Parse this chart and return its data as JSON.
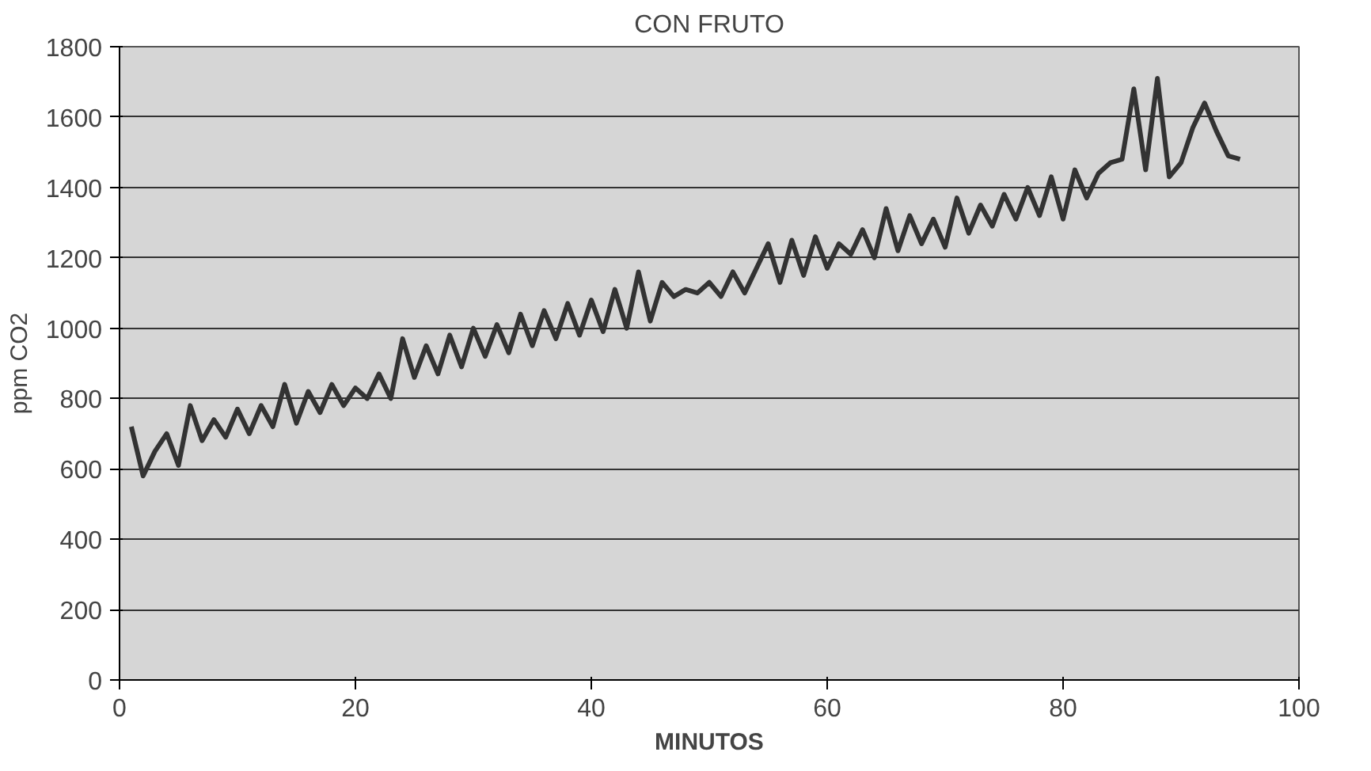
{
  "chart_data": {
    "type": "line",
    "title": "CON FRUTO",
    "xlabel": "MINUTOS",
    "ylabel": "ppm CO2",
    "x": [
      1,
      2,
      3,
      4,
      5,
      6,
      7,
      8,
      9,
      10,
      11,
      12,
      13,
      14,
      15,
      16,
      17,
      18,
      19,
      20,
      21,
      22,
      23,
      24,
      25,
      26,
      27,
      28,
      29,
      30,
      31,
      32,
      33,
      34,
      35,
      36,
      37,
      38,
      39,
      40,
      41,
      42,
      43,
      44,
      45,
      46,
      47,
      48,
      49,
      50,
      51,
      52,
      53,
      54,
      55,
      56,
      57,
      58,
      59,
      60,
      61,
      62,
      63,
      64,
      65,
      66,
      67,
      68,
      69,
      70,
      71,
      72,
      73,
      74,
      75,
      76,
      77,
      78,
      79,
      80,
      81,
      82,
      83,
      84,
      85,
      86,
      87,
      88,
      89,
      90,
      91,
      92,
      93,
      94,
      95
    ],
    "series": [
      {
        "color": "#333333",
        "values": [
          720,
          580,
          650,
          700,
          610,
          780,
          680,
          740,
          690,
          770,
          700,
          780,
          720,
          840,
          730,
          820,
          760,
          840,
          780,
          830,
          800,
          870,
          800,
          970,
          860,
          950,
          870,
          980,
          890,
          1000,
          920,
          1010,
          930,
          1040,
          950,
          1050,
          970,
          1070,
          980,
          1080,
          990,
          1110,
          1000,
          1160,
          1020,
          1130,
          1090,
          1110,
          1100,
          1130,
          1090,
          1160,
          1100,
          1170,
          1240,
          1130,
          1250,
          1150,
          1260,
          1170,
          1240,
          1210,
          1280,
          1200,
          1340,
          1220,
          1320,
          1240,
          1310,
          1230,
          1370,
          1270,
          1350,
          1290,
          1380,
          1310,
          1400,
          1320,
          1430,
          1310,
          1450,
          1370,
          1440,
          1470,
          1480,
          1680,
          1450,
          1710,
          1430,
          1470,
          1570,
          1640,
          1560,
          1490,
          1480
        ]
      }
    ],
    "xlim": [
      0,
      100
    ],
    "xticks": [
      0,
      20,
      40,
      60,
      80,
      100
    ],
    "ylim": [
      0,
      1800
    ],
    "yticks": [
      0,
      200,
      400,
      600,
      800,
      1000,
      1200,
      1400,
      1600,
      1800
    ],
    "grid": "y",
    "marker": "none",
    "line_style": "solid"
  }
}
